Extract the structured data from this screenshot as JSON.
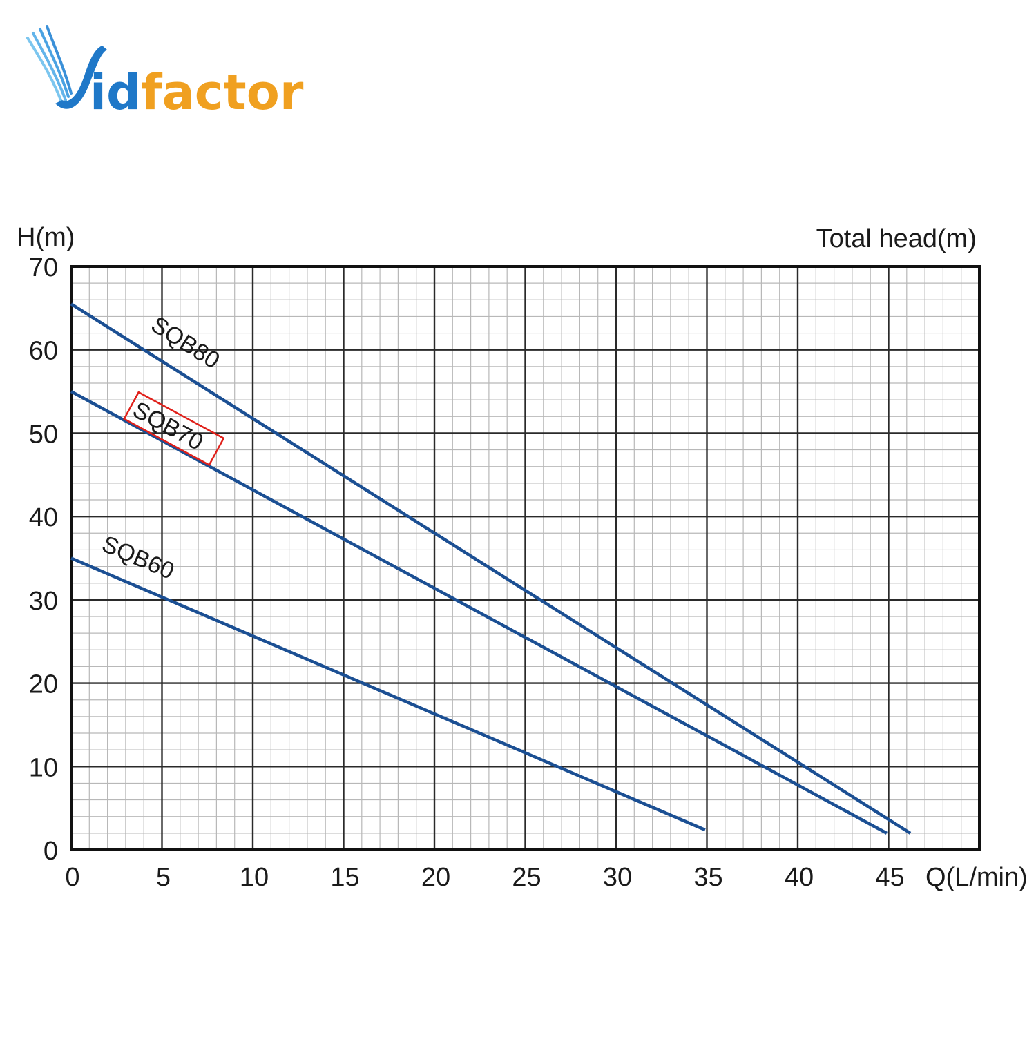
{
  "brand": {
    "name_first": "V",
    "name_mid": "id",
    "name_last": "factor",
    "colors": {
      "blue": "#1f78c8",
      "light_blue": "#5cb8ea",
      "orange": "#f0a020"
    }
  },
  "chart_data": {
    "type": "line",
    "ylabel": "H(m)",
    "ylabel_right": "Total head(m)",
    "xlabel": "Q(L/min)",
    "xlim": [
      0,
      50
    ],
    "ylim": [
      0,
      70
    ],
    "xticks": [
      "0",
      "5",
      "10",
      "15",
      "20",
      "25",
      "30",
      "35",
      "40",
      "45"
    ],
    "yticks": [
      "0",
      "10",
      "20",
      "30",
      "40",
      "50",
      "60",
      "70"
    ],
    "grid": true,
    "highlighted_series": "SQB70",
    "line_color": "#1b4f93",
    "highlight_color": "#e0201a",
    "series": [
      {
        "name": "SQB80",
        "x": [
          0,
          46.2
        ],
        "y": [
          65.5,
          2
        ]
      },
      {
        "name": "SQB70",
        "x": [
          0,
          44.9
        ],
        "y": [
          55,
          2
        ]
      },
      {
        "name": "SQB60",
        "x": [
          0,
          34.9
        ],
        "y": [
          35,
          2.4
        ]
      }
    ]
  }
}
